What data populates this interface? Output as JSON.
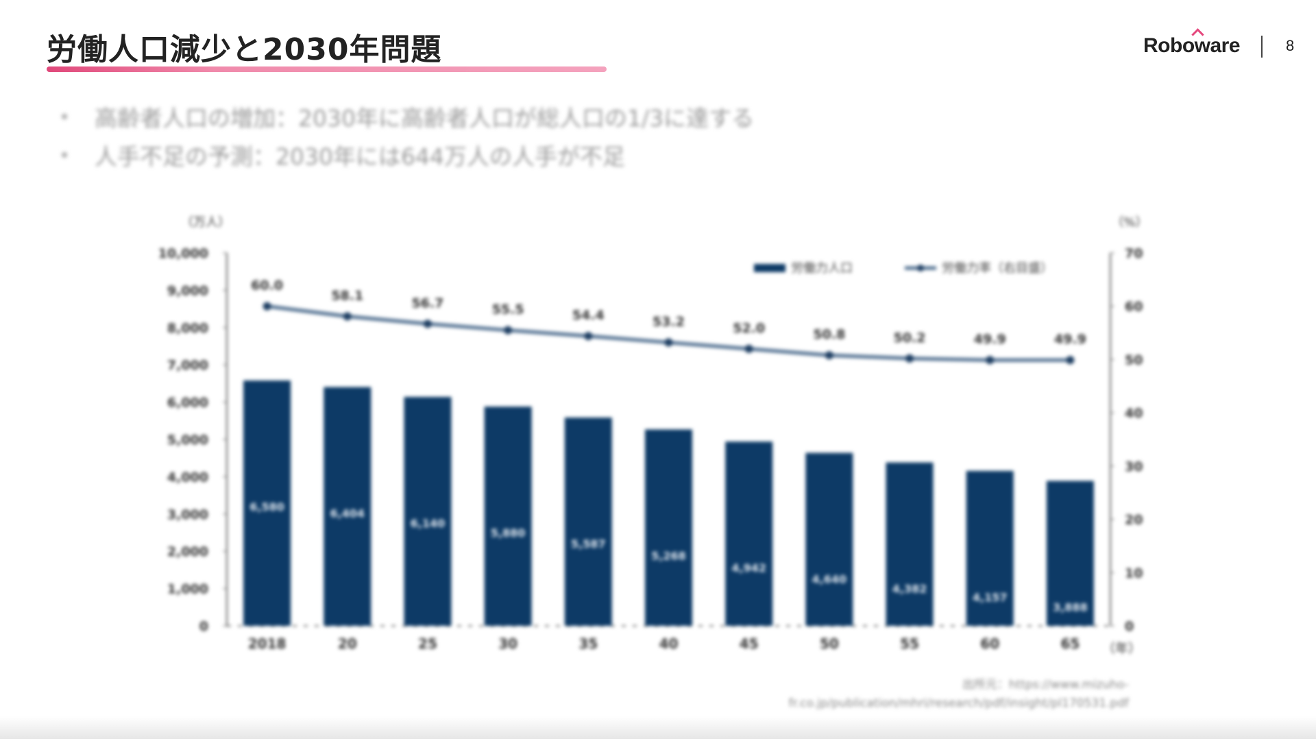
{
  "header": {
    "title": "労働人口減少と2030年問題",
    "logo": "Roboware",
    "page_number": "8",
    "accent_color": "#e5487d"
  },
  "bullets": [
    "高齢者人口の増加：2030年に高齢者人口が総人口の1/3に達する",
    "人手不足の予測：2030年には644万人の人手が不足"
  ],
  "chart_data": {
    "type": "bar+line",
    "categories": [
      "2018",
      "20",
      "25",
      "30",
      "35",
      "40",
      "45",
      "50",
      "55",
      "60",
      "65"
    ],
    "x_unit": "（年）",
    "y_left_unit": "（万人）",
    "y_right_unit": "（%）",
    "y_left_lim": [
      0,
      10000
    ],
    "y_left_ticks": [
      "0",
      "1,000",
      "2,000",
      "3,000",
      "4,000",
      "5,000",
      "6,000",
      "7,000",
      "8,000",
      "9,000",
      "10,000"
    ],
    "y_right_lim": [
      0,
      70
    ],
    "y_right_ticks": [
      "0",
      "10",
      "20",
      "30",
      "40",
      "50",
      "60",
      "70"
    ],
    "series": [
      {
        "name": "労働力人口",
        "type": "bar",
        "axis": "left",
        "color": "#0d3a66",
        "values": [
          6580,
          6404,
          6140,
          5880,
          5587,
          5268,
          4942,
          4640,
          4382,
          4157,
          3888
        ],
        "labels": [
          "6,580",
          "6,404",
          "6,140",
          "5,880",
          "5,587",
          "5,268",
          "4,942",
          "4,640",
          "4,382",
          "4,157",
          "3,888"
        ]
      },
      {
        "name": "労働力率（右目盛）",
        "type": "line",
        "axis": "right",
        "color": "#4a6a8c",
        "values": [
          60.0,
          58.1,
          56.7,
          55.5,
          54.4,
          53.2,
          52.0,
          50.8,
          50.2,
          49.9,
          49.9
        ],
        "labels": [
          "60.0",
          "58.1",
          "56.7",
          "55.5",
          "54.4",
          "53.2",
          "52.0",
          "50.8",
          "50.2",
          "49.9",
          "49.9"
        ]
      }
    ],
    "legend": "top-right",
    "source_line1": "出所元：https://www.mizuho-",
    "source_line2": "fr.co.jp/publication/mhri/research/pdf/insight/pl170531.pdf"
  }
}
